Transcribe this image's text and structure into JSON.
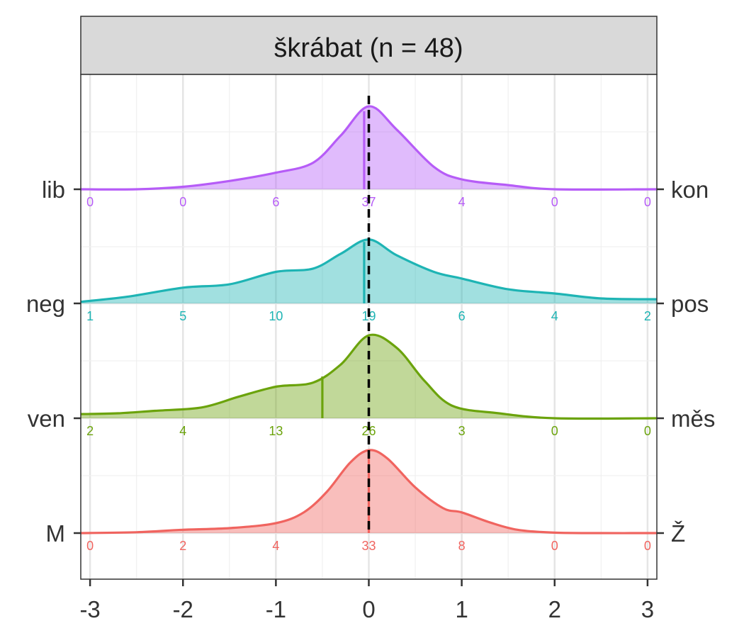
{
  "chart_data": {
    "type": "ridgeline",
    "title": "škrábat (n = 48)",
    "xlabel": "",
    "ylabel": "",
    "xlim": [
      -3.1,
      3.1
    ],
    "x_ticks": [
      -3,
      -2,
      -1,
      0,
      1,
      2,
      3
    ],
    "x_tick_labels": [
      "-3",
      "-2",
      "-1",
      "0",
      "1",
      "2",
      "3"
    ],
    "grid": true,
    "reference_line": {
      "x": 0,
      "style": "dashed",
      "color": "#000000"
    },
    "count_positions": [
      -3,
      -2,
      -1,
      0,
      1,
      2,
      3
    ],
    "series": [
      {
        "left_label": "M",
        "right_label": "Ž",
        "color": "#F0645F",
        "counts": [
          0,
          2,
          4,
          33,
          8,
          0,
          0
        ],
        "mean": 0.0,
        "density": [
          [
            -3.1,
            0.0
          ],
          [
            -2.5,
            0.01
          ],
          [
            -2.0,
            0.04
          ],
          [
            -1.5,
            0.06
          ],
          [
            -1.0,
            0.12
          ],
          [
            -0.7,
            0.25
          ],
          [
            -0.45,
            0.5
          ],
          [
            -0.2,
            0.85
          ],
          [
            0.0,
            1.0
          ],
          [
            0.2,
            0.9
          ],
          [
            0.5,
            0.55
          ],
          [
            0.8,
            0.3
          ],
          [
            1.0,
            0.25
          ],
          [
            1.3,
            0.13
          ],
          [
            1.6,
            0.04
          ],
          [
            2.0,
            0.005
          ],
          [
            2.5,
            0.0
          ],
          [
            3.1,
            0.0
          ]
        ]
      },
      {
        "left_label": "ven",
        "right_label": "měs",
        "color": "#6BA30C",
        "counts": [
          2,
          4,
          13,
          26,
          3,
          0,
          0
        ],
        "mean": -0.5,
        "density": [
          [
            -3.1,
            0.05
          ],
          [
            -2.7,
            0.06
          ],
          [
            -2.3,
            0.09
          ],
          [
            -1.8,
            0.13
          ],
          [
            -1.4,
            0.26
          ],
          [
            -1.0,
            0.38
          ],
          [
            -0.6,
            0.43
          ],
          [
            -0.3,
            0.65
          ],
          [
            0.0,
            1.0
          ],
          [
            0.3,
            0.85
          ],
          [
            0.6,
            0.45
          ],
          [
            0.9,
            0.15
          ],
          [
            1.4,
            0.06
          ],
          [
            2.0,
            0.0
          ],
          [
            3.1,
            0.0
          ]
        ]
      },
      {
        "left_label": "neg",
        "right_label": "pos",
        "color": "#1EB4B4",
        "counts": [
          1,
          5,
          10,
          19,
          6,
          4,
          2
        ],
        "mean": -0.05,
        "density": [
          [
            -3.1,
            0.02
          ],
          [
            -2.6,
            0.08
          ],
          [
            -2.0,
            0.19
          ],
          [
            -1.5,
            0.23
          ],
          [
            -1.0,
            0.38
          ],
          [
            -0.6,
            0.42
          ],
          [
            -0.3,
            0.6
          ],
          [
            0.0,
            0.77
          ],
          [
            0.3,
            0.58
          ],
          [
            0.7,
            0.38
          ],
          [
            1.0,
            0.3
          ],
          [
            1.5,
            0.17
          ],
          [
            2.0,
            0.12
          ],
          [
            2.5,
            0.06
          ],
          [
            3.1,
            0.05
          ]
        ]
      },
      {
        "left_label": "lib",
        "right_label": "kon",
        "color": "#B65CF7",
        "counts": [
          0,
          0,
          6,
          37,
          4,
          0,
          0
        ],
        "mean": -0.05,
        "density": [
          [
            -3.1,
            0.0
          ],
          [
            -2.5,
            0.0
          ],
          [
            -2.0,
            0.03
          ],
          [
            -1.5,
            0.1
          ],
          [
            -1.0,
            0.2
          ],
          [
            -0.6,
            0.32
          ],
          [
            -0.3,
            0.65
          ],
          [
            0.0,
            1.0
          ],
          [
            0.3,
            0.72
          ],
          [
            0.7,
            0.27
          ],
          [
            1.0,
            0.12
          ],
          [
            1.5,
            0.05
          ],
          [
            2.0,
            0.0
          ],
          [
            3.1,
            0.0
          ]
        ]
      }
    ]
  }
}
